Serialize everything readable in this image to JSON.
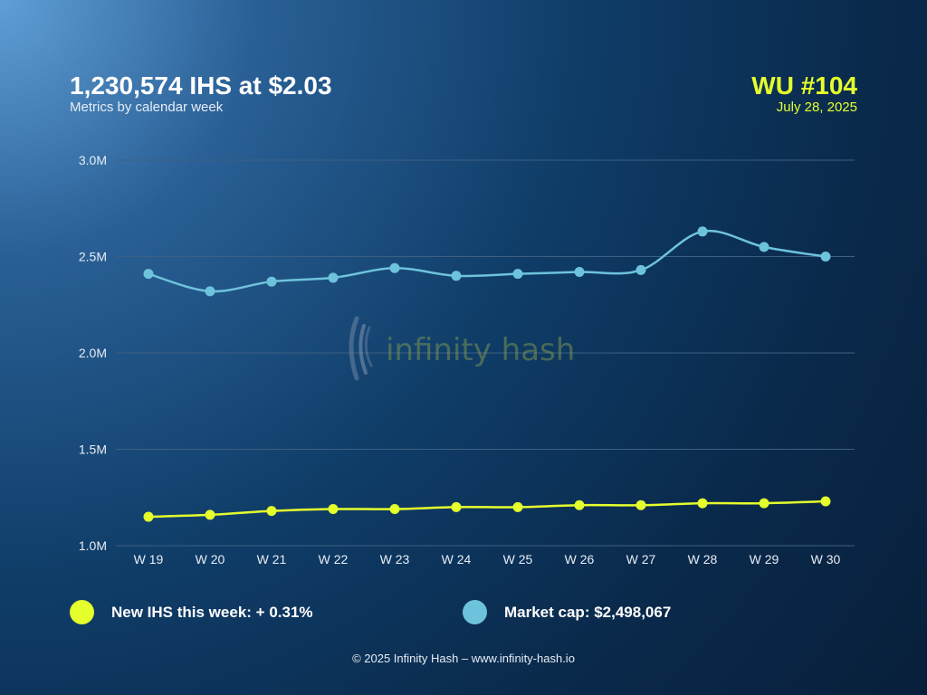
{
  "header": {
    "headline": "1,230,574 IHS at $2.03",
    "subtitle": "Metrics by calendar week",
    "update_title": "WU #104",
    "update_date": "July 28, 2025"
  },
  "watermark": {
    "text": "infinity hash"
  },
  "legend": {
    "ihs_label": "New IHS this week: ",
    "ihs_value": "+ 0.31%",
    "cap_label": "Market cap: ",
    "cap_value": "$2,498,067"
  },
  "footer": {
    "text": "© 2025 Infinity Hash – www.infinity-hash.io"
  },
  "colors": {
    "ihs": "#e5ff2c",
    "market_cap": "#6ec3dc",
    "grid": "#3d5f82"
  },
  "chart_data": {
    "type": "line",
    "categories": [
      "W 19",
      "W 20",
      "W 21",
      "W 22",
      "W 23",
      "W 24",
      "W 25",
      "W 26",
      "W 27",
      "W 28",
      "W 29",
      "W 30"
    ],
    "y_ticks": [
      "3.0M",
      "2.5M",
      "2.0M",
      "1.5M",
      "1.0M"
    ],
    "ylim": [
      1000000,
      3000000
    ],
    "grid": true,
    "series": [
      {
        "key": "market_cap",
        "values": [
          2410000,
          2320000,
          2370000,
          2390000,
          2440000,
          2400000,
          2410000,
          2420000,
          2430000,
          2630000,
          2550000,
          2500000
        ]
      },
      {
        "key": "ihs",
        "values": [
          1150000,
          1160000,
          1180000,
          1190000,
          1190000,
          1200000,
          1200000,
          1210000,
          1210000,
          1220000,
          1220000,
          1230000
        ]
      }
    ]
  }
}
